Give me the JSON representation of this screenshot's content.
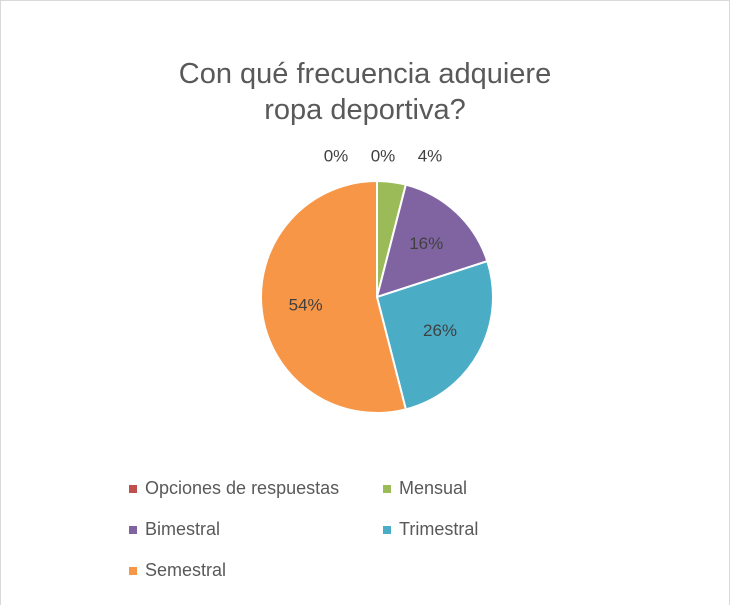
{
  "chart_data": {
    "type": "pie",
    "title": "Con qué frecuencia adquiere ropa deportiva?",
    "categories": [
      null,
      "Opciones de respuestas",
      "Mensual",
      "Bimestral",
      "Trimestral",
      "Semestral"
    ],
    "values": [
      0,
      0,
      4,
      16,
      26,
      54
    ],
    "value_labels": [
      "0%",
      "0%",
      "4%",
      "16%",
      "26%",
      "54%"
    ],
    "colors": [
      "#4f81bd",
      "#c0504d",
      "#9bbb59",
      "#8064a2",
      "#4bacc6",
      "#f79646"
    ],
    "legend": "bottom"
  }
}
